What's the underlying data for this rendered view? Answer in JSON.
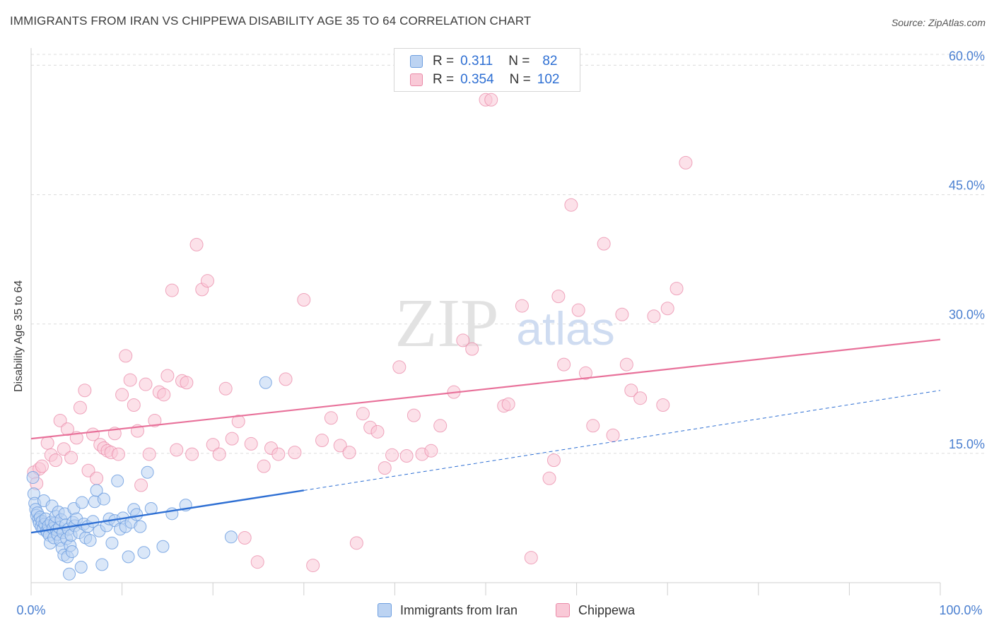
{
  "header": {
    "title": "IMMIGRANTS FROM IRAN VS CHIPPEWA DISABILITY AGE 35 TO 64 CORRELATION CHART",
    "source": "Source: ZipAtlas.com"
  },
  "watermark": {
    "zip": "ZIP",
    "atlas": "atlas"
  },
  "legend": {
    "r_label": "R =",
    "n_label": "N =",
    "entries": [
      {
        "r": "0.311",
        "n": "82"
      },
      {
        "r": "0.354",
        "n": "102"
      }
    ]
  },
  "colors": {
    "iran_fill": "#bcd3f2",
    "iran_stroke": "#6e9fe0",
    "iran_line": "#2e6fd3",
    "chippewa_fill": "#f9c9d7",
    "chippewa_stroke": "#ea8aa8",
    "chippewa_line": "#e8719a",
    "tick_label": "#4a7fd0"
  },
  "chart_data": {
    "type": "scatter",
    "title": "IMMIGRANTS FROM IRAN VS CHIPPEWA DISABILITY AGE 35 TO 64 CORRELATION CHART",
    "xlabel": "",
    "ylabel": "Disability Age 35 to 64",
    "xlim": [
      0,
      100
    ],
    "ylim": [
      0,
      62
    ],
    "x_tick_labels": [
      "0.0%",
      "100.0%"
    ],
    "y_ticks": [
      15,
      30,
      45,
      60
    ],
    "y_tick_labels": [
      "15.0%",
      "30.0%",
      "45.0%",
      "60.0%"
    ],
    "series": [
      {
        "name": "Immigrants from Iran",
        "r": 0.311,
        "n": 82,
        "trend": {
          "x0": 0,
          "y0": 5.8,
          "x1": 30,
          "y1": 10.7,
          "dashed_to_x": 100,
          "dashed_to_y": 22.3
        },
        "points": [
          [
            0.2,
            12.2
          ],
          [
            0.3,
            10.3
          ],
          [
            0.4,
            9.2
          ],
          [
            0.5,
            8.5
          ],
          [
            0.6,
            7.8
          ],
          [
            0.7,
            8.1
          ],
          [
            0.8,
            7.3
          ],
          [
            0.9,
            6.9
          ],
          [
            1.0,
            7.6
          ],
          [
            1.1,
            6.5
          ],
          [
            1.2,
            7.1
          ],
          [
            1.3,
            6.2
          ],
          [
            1.4,
            9.5
          ],
          [
            1.5,
            6.8
          ],
          [
            1.6,
            7.4
          ],
          [
            1.7,
            6.0
          ],
          [
            1.8,
            5.8
          ],
          [
            1.9,
            6.6
          ],
          [
            2.0,
            5.5
          ],
          [
            2.1,
            4.6
          ],
          [
            2.2,
            7.0
          ],
          [
            2.3,
            8.9
          ],
          [
            2.4,
            6.3
          ],
          [
            2.5,
            5.2
          ],
          [
            2.6,
            6.9
          ],
          [
            2.7,
            7.7
          ],
          [
            2.8,
            6.1
          ],
          [
            2.9,
            5.6
          ],
          [
            3.0,
            8.2
          ],
          [
            3.1,
            6.4
          ],
          [
            3.2,
            4.9
          ],
          [
            3.3,
            7.3
          ],
          [
            3.4,
            4.0
          ],
          [
            3.5,
            5.8
          ],
          [
            3.6,
            3.2
          ],
          [
            3.7,
            8.0
          ],
          [
            3.8,
            6.7
          ],
          [
            3.9,
            5.1
          ],
          [
            4.0,
            3.0
          ],
          [
            4.1,
            6.2
          ],
          [
            4.2,
            1.0
          ],
          [
            4.3,
            4.3
          ],
          [
            4.4,
            5.5
          ],
          [
            4.5,
            3.6
          ],
          [
            4.6,
            7.0
          ],
          [
            4.7,
            8.6
          ],
          [
            4.8,
            6.6
          ],
          [
            5.0,
            7.4
          ],
          [
            5.3,
            5.8
          ],
          [
            5.5,
            1.8
          ],
          [
            5.6,
            9.3
          ],
          [
            5.8,
            6.8
          ],
          [
            6.0,
            5.2
          ],
          [
            6.2,
            6.5
          ],
          [
            6.5,
            4.9
          ],
          [
            6.8,
            7.1
          ],
          [
            7.0,
            9.4
          ],
          [
            7.2,
            10.7
          ],
          [
            7.5,
            6.0
          ],
          [
            7.8,
            2.1
          ],
          [
            8.0,
            9.7
          ],
          [
            8.3,
            6.6
          ],
          [
            8.6,
            7.4
          ],
          [
            8.9,
            4.6
          ],
          [
            9.2,
            7.2
          ],
          [
            9.5,
            11.8
          ],
          [
            9.8,
            6.2
          ],
          [
            10.1,
            7.5
          ],
          [
            10.4,
            6.5
          ],
          [
            10.7,
            3.0
          ],
          [
            11.0,
            7.0
          ],
          [
            11.3,
            8.5
          ],
          [
            11.6,
            7.9
          ],
          [
            12.0,
            6.5
          ],
          [
            12.4,
            3.5
          ],
          [
            12.8,
            12.8
          ],
          [
            13.2,
            8.6
          ],
          [
            14.5,
            4.2
          ],
          [
            15.5,
            8.0
          ],
          [
            17.0,
            9.0
          ],
          [
            22.0,
            5.3
          ],
          [
            25.8,
            23.2
          ]
        ]
      },
      {
        "name": "Chippewa",
        "r": 0.354,
        "n": 102,
        "trend": {
          "x0": 0,
          "y0": 16.7,
          "x1": 100,
          "y1": 28.2
        },
        "points": [
          [
            0.3,
            12.8
          ],
          [
            0.6,
            11.5
          ],
          [
            0.9,
            13.2
          ],
          [
            1.2,
            13.5
          ],
          [
            1.8,
            16.2
          ],
          [
            2.2,
            14.8
          ],
          [
            2.7,
            14.2
          ],
          [
            3.2,
            18.8
          ],
          [
            3.6,
            15.5
          ],
          [
            4.0,
            17.8
          ],
          [
            4.4,
            14.5
          ],
          [
            5.0,
            16.8
          ],
          [
            5.4,
            20.3
          ],
          [
            5.9,
            22.3
          ],
          [
            6.3,
            13.0
          ],
          [
            6.8,
            17.2
          ],
          [
            7.2,
            12.1
          ],
          [
            7.6,
            16.0
          ],
          [
            8.0,
            15.6
          ],
          [
            8.4,
            15.3
          ],
          [
            8.8,
            15.1
          ],
          [
            9.2,
            17.3
          ],
          [
            9.6,
            14.9
          ],
          [
            10.0,
            21.8
          ],
          [
            10.4,
            26.3
          ],
          [
            10.9,
            23.5
          ],
          [
            11.3,
            20.6
          ],
          [
            11.7,
            17.6
          ],
          [
            12.1,
            11.3
          ],
          [
            12.6,
            23.0
          ],
          [
            13.0,
            14.9
          ],
          [
            13.6,
            18.8
          ],
          [
            14.1,
            22.1
          ],
          [
            14.6,
            21.8
          ],
          [
            15.0,
            24.0
          ],
          [
            15.5,
            33.9
          ],
          [
            16.0,
            15.4
          ],
          [
            16.6,
            23.4
          ],
          [
            17.1,
            23.2
          ],
          [
            17.7,
            14.9
          ],
          [
            18.2,
            39.2
          ],
          [
            18.8,
            34.0
          ],
          [
            19.4,
            35.0
          ],
          [
            20.0,
            16.0
          ],
          [
            20.7,
            14.9
          ],
          [
            21.4,
            22.5
          ],
          [
            22.1,
            16.7
          ],
          [
            22.8,
            18.7
          ],
          [
            23.5,
            5.2
          ],
          [
            24.2,
            16.1
          ],
          [
            24.9,
            2.4
          ],
          [
            25.6,
            13.5
          ],
          [
            26.4,
            15.6
          ],
          [
            27.2,
            14.9
          ],
          [
            28.0,
            23.6
          ],
          [
            29.0,
            15.1
          ],
          [
            30.0,
            32.8
          ],
          [
            31.0,
            2.0
          ],
          [
            32.0,
            16.5
          ],
          [
            33.0,
            19.1
          ],
          [
            34.0,
            15.9
          ],
          [
            35.0,
            15.1
          ],
          [
            35.8,
            4.6
          ],
          [
            36.5,
            19.6
          ],
          [
            37.3,
            18.0
          ],
          [
            38.1,
            17.5
          ],
          [
            38.9,
            13.3
          ],
          [
            39.7,
            14.8
          ],
          [
            40.5,
            25.0
          ],
          [
            41.3,
            14.7
          ],
          [
            42.1,
            19.4
          ],
          [
            43.0,
            14.9
          ],
          [
            44.0,
            15.3
          ],
          [
            45.0,
            18.2
          ],
          [
            46.5,
            22.1
          ],
          [
            47.5,
            28.1
          ],
          [
            48.5,
            27.1
          ],
          [
            50.0,
            56.0
          ],
          [
            50.6,
            56.0
          ],
          [
            52.0,
            20.5
          ],
          [
            52.5,
            20.7
          ],
          [
            54.0,
            32.1
          ],
          [
            55.0,
            2.9
          ],
          [
            57.0,
            12.1
          ],
          [
            57.5,
            14.2
          ],
          [
            58.0,
            33.2
          ],
          [
            58.6,
            25.3
          ],
          [
            59.4,
            43.8
          ],
          [
            60.2,
            31.6
          ],
          [
            61.0,
            24.3
          ],
          [
            61.8,
            18.2
          ],
          [
            63.0,
            39.3
          ],
          [
            64.0,
            17.1
          ],
          [
            65.0,
            31.1
          ],
          [
            65.5,
            25.3
          ],
          [
            66.0,
            22.3
          ],
          [
            67.0,
            21.4
          ],
          [
            68.5,
            30.9
          ],
          [
            69.5,
            20.6
          ],
          [
            70.0,
            31.8
          ],
          [
            71.0,
            34.1
          ],
          [
            72.0,
            48.7
          ]
        ]
      }
    ]
  },
  "bottom_legend": {
    "items": [
      {
        "label": "Immigrants from Iran"
      },
      {
        "label": "Chippewa"
      }
    ]
  }
}
